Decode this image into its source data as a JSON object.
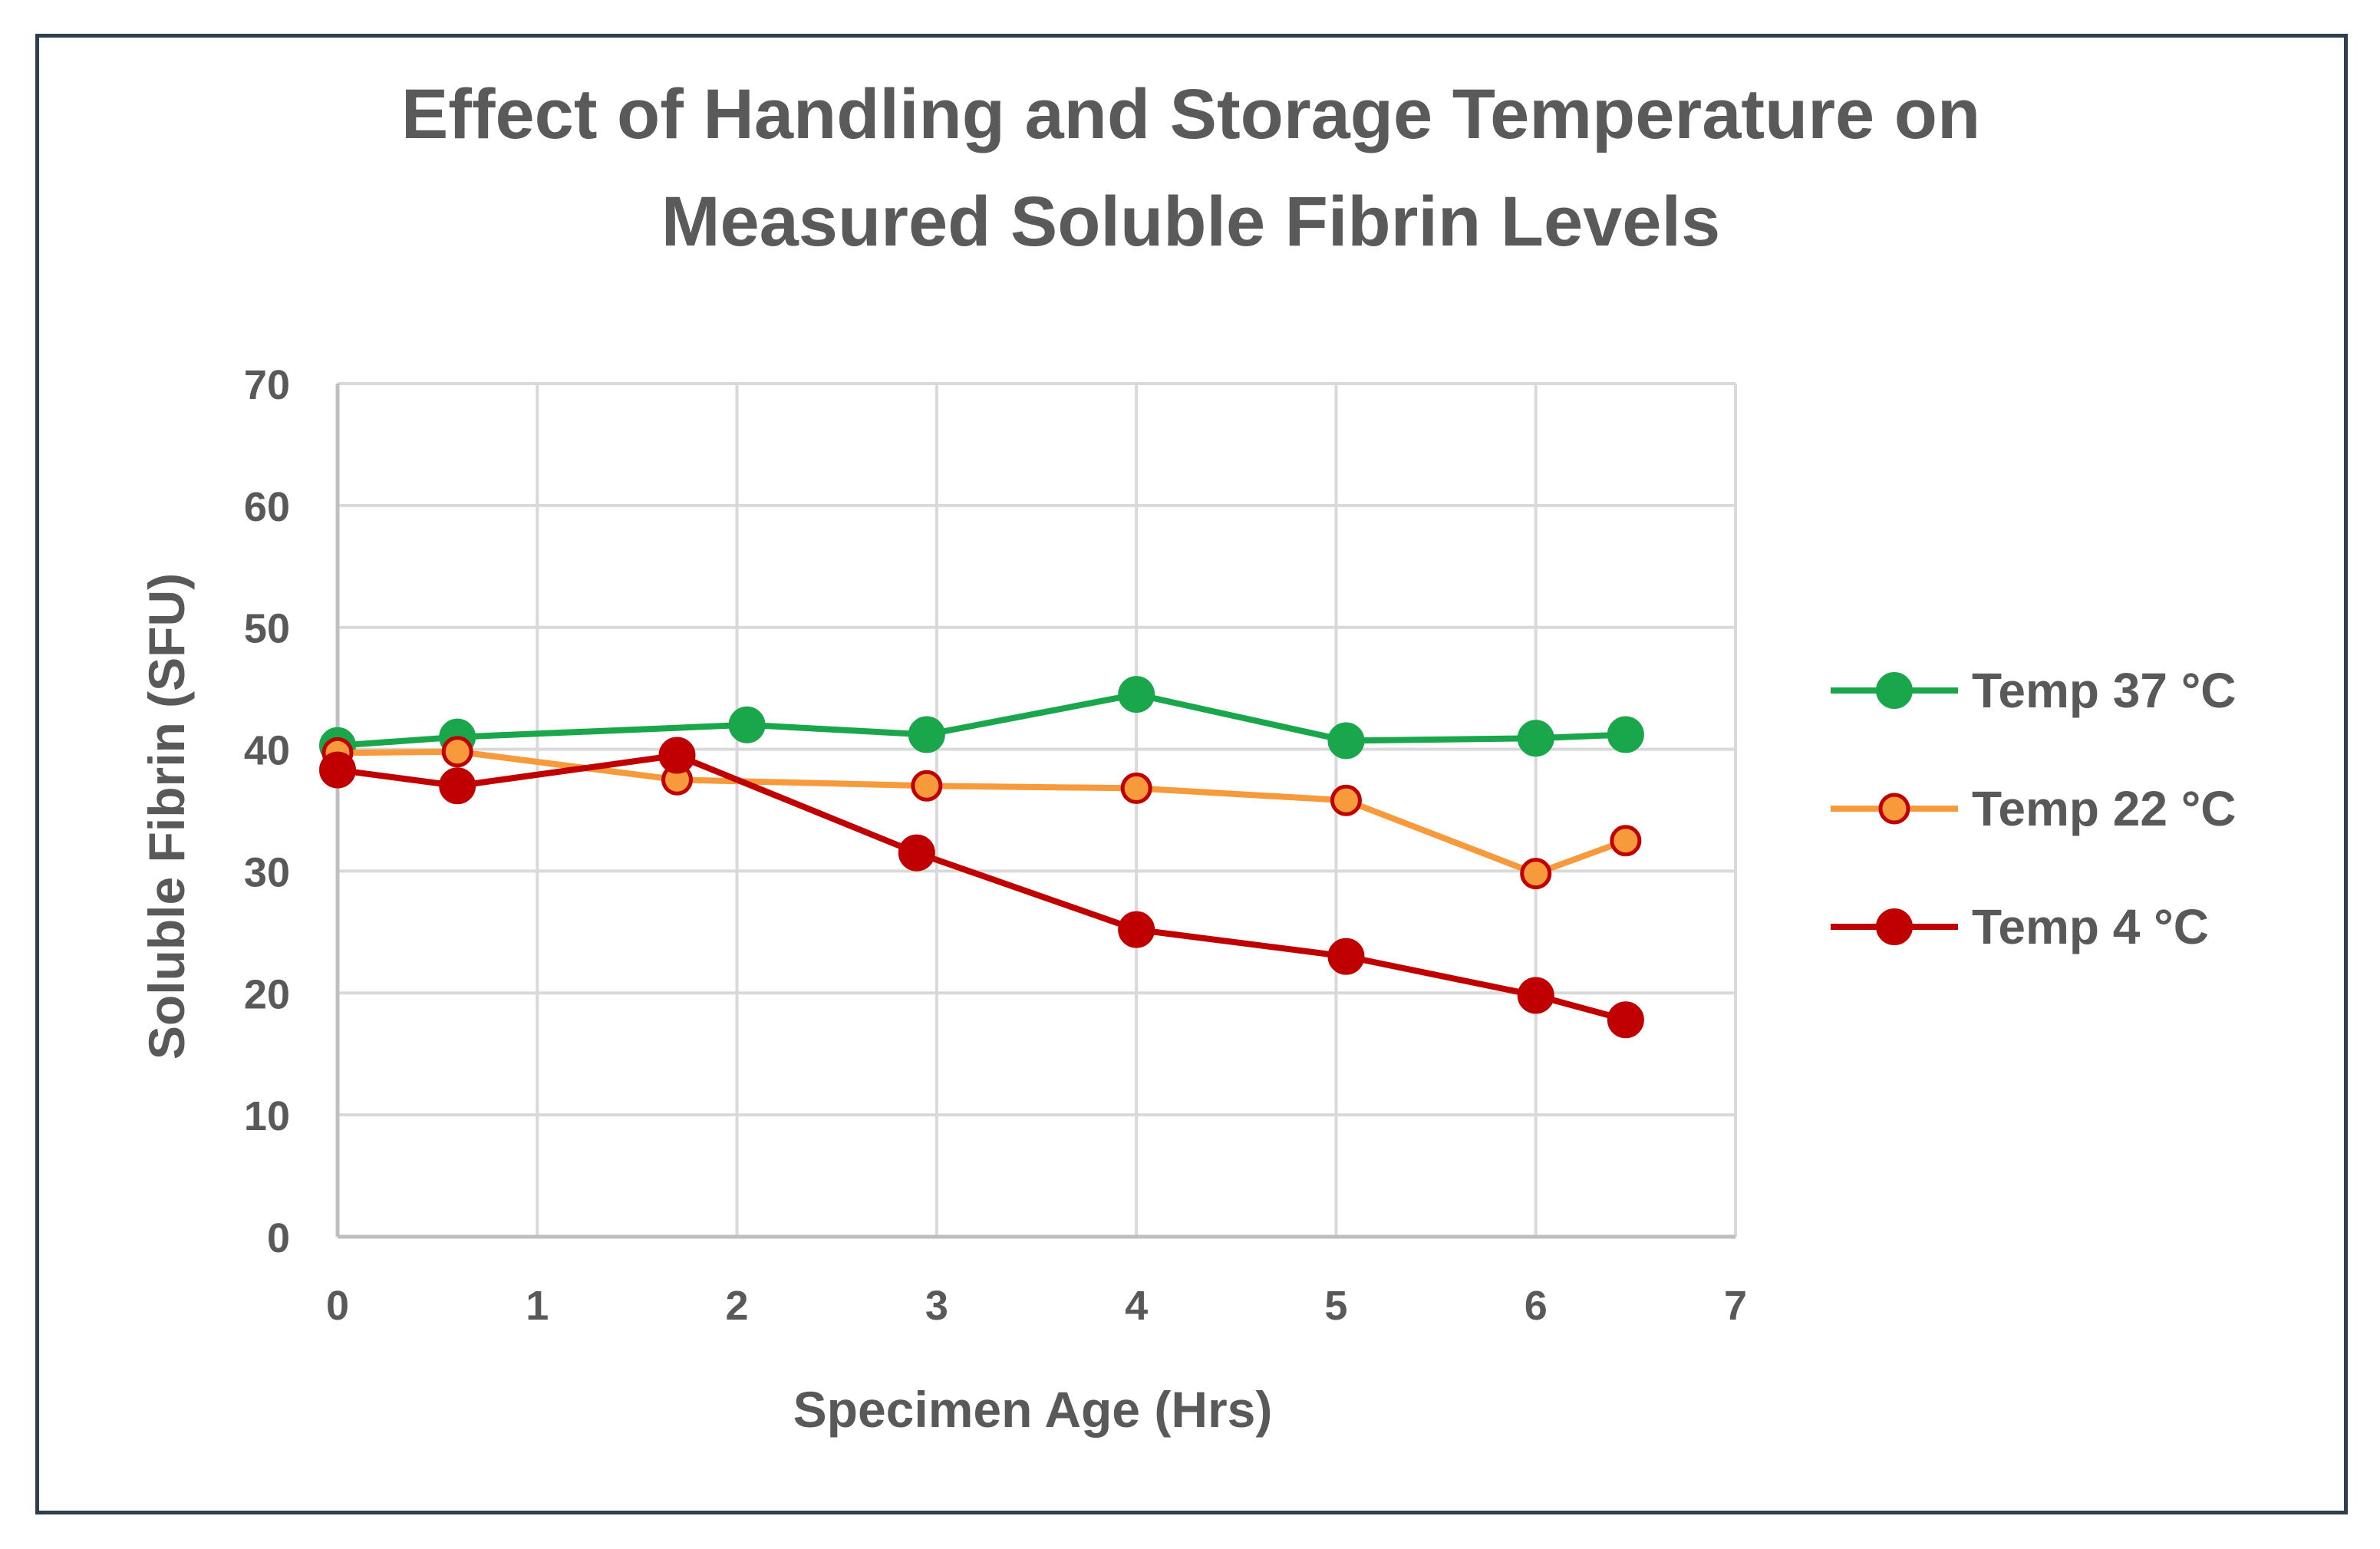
{
  "chart_data": {
    "type": "line",
    "title_lines": [
      "Effect of Handling and Storage Temperature on",
      "Measured Soluble Fibrin Levels"
    ],
    "xlabel": "Specimen Age (Hrs)",
    "ylabel": "Soluble Fibrin (SFU)",
    "xlim": [
      0,
      7
    ],
    "ylim": [
      0,
      70
    ],
    "x_ticks": [
      "0",
      "1",
      "2",
      "3",
      "4",
      "5",
      "6",
      "7"
    ],
    "y_ticks": [
      "0",
      "10",
      "20",
      "30",
      "40",
      "50",
      "60",
      "70"
    ],
    "grid": true,
    "legend_position": "right",
    "series": [
      {
        "name": "Temp 37 °C",
        "color": "#1aa64a",
        "marker": "filled-circle",
        "x": [
          0,
          0.6,
          2.05,
          2.95,
          4.0,
          5.05,
          6.0,
          6.45
        ],
        "y": [
          40.3,
          41.0,
          42.0,
          41.2,
          44.5,
          40.7,
          40.9,
          41.2
        ]
      },
      {
        "name": "Temp 22 °C",
        "color": "#f79a3b",
        "marker": "circle-red-outline",
        "x": [
          0,
          0.6,
          1.7,
          2.95,
          4.0,
          5.05,
          6.0,
          6.45
        ],
        "y": [
          39.7,
          39.8,
          37.5,
          37.0,
          36.8,
          35.8,
          29.8,
          32.5
        ]
      },
      {
        "name": "Temp 4 °C",
        "color": "#c00000",
        "marker": "filled-circle",
        "x": [
          0,
          0.6,
          1.7,
          2.9,
          4.0,
          5.05,
          6.0,
          6.45
        ],
        "y": [
          38.3,
          37.0,
          39.5,
          31.5,
          25.2,
          23.0,
          19.8,
          17.8
        ]
      }
    ]
  }
}
